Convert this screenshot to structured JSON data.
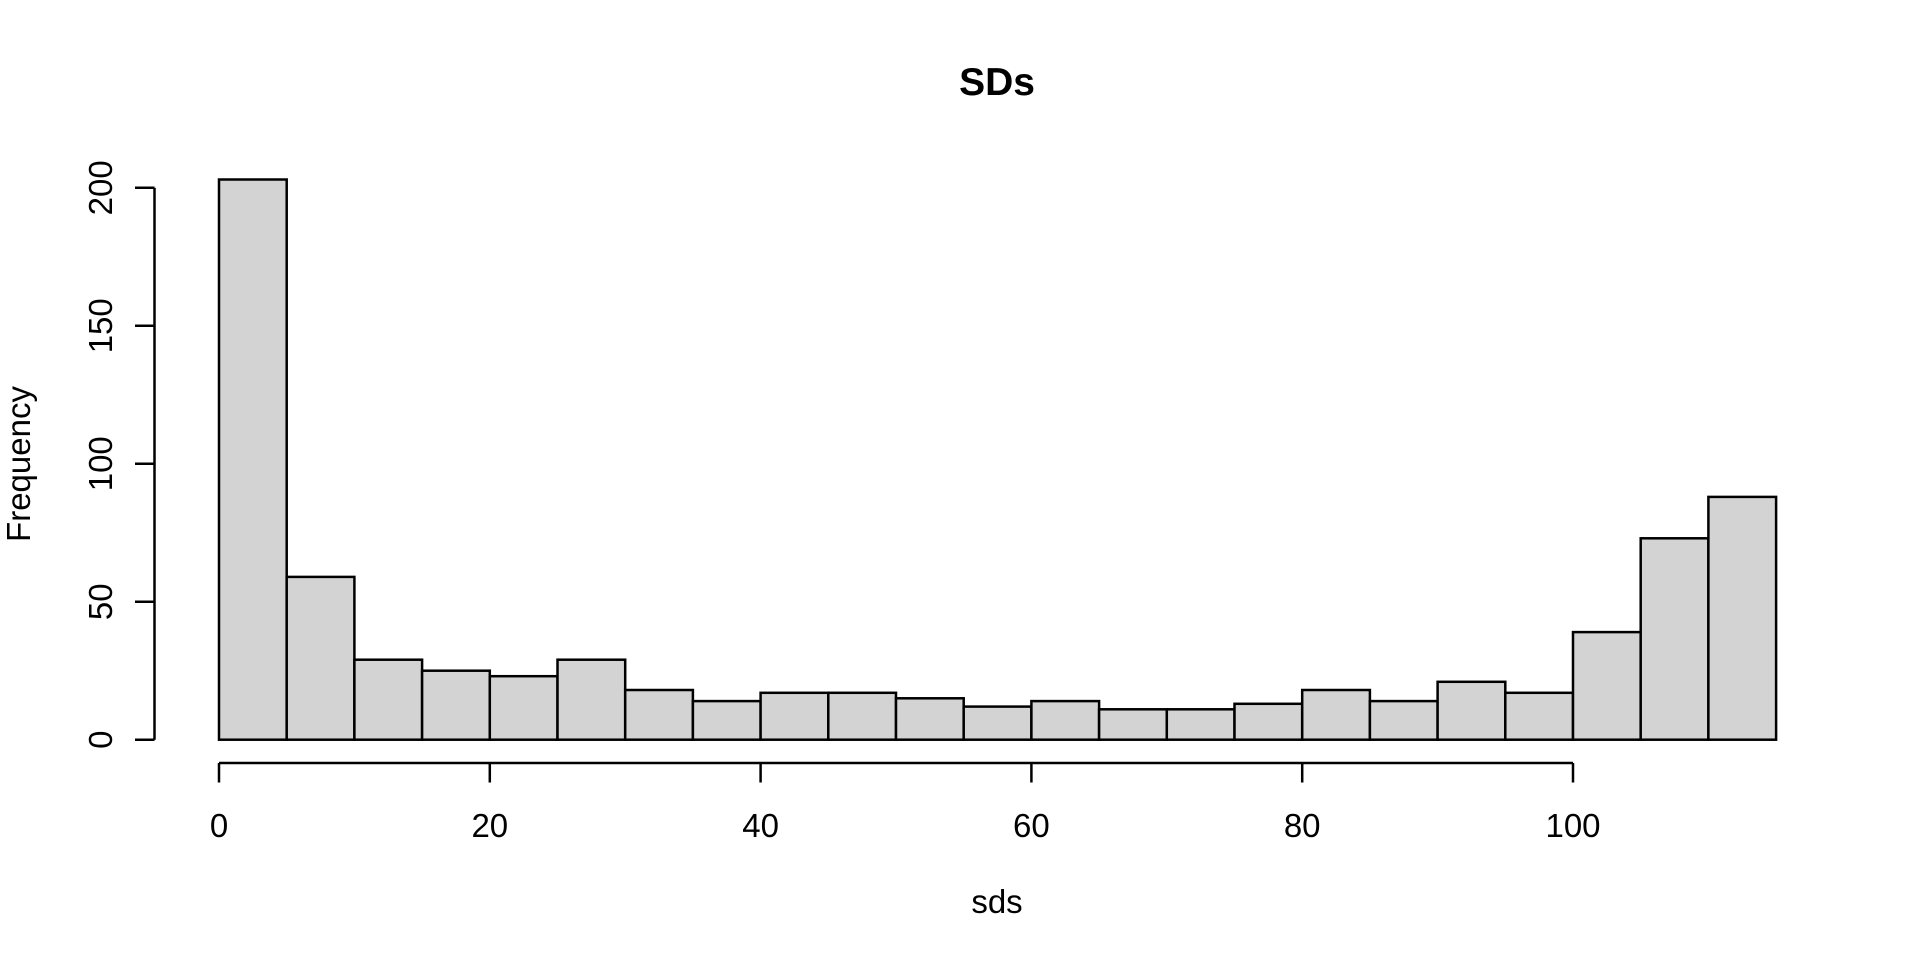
{
  "chart_data": {
    "type": "bar",
    "variant": "histogram",
    "title": "SDs",
    "xlabel": "sds",
    "ylabel": "Frequency",
    "bin_start": 0,
    "bin_width": 5,
    "bin_edges": [
      0,
      5,
      10,
      15,
      20,
      25,
      30,
      35,
      40,
      45,
      50,
      55,
      60,
      65,
      70,
      75,
      80,
      85,
      90,
      95,
      100,
      105,
      110,
      115
    ],
    "counts": [
      203,
      59,
      29,
      25,
      23,
      29,
      18,
      14,
      17,
      17,
      15,
      12,
      14,
      11,
      11,
      13,
      18,
      14,
      21,
      17,
      39,
      73,
      88
    ],
    "x_ticks": [
      0,
      20,
      40,
      60,
      80,
      100
    ],
    "y_ticks": [
      0,
      50,
      100,
      150,
      200
    ],
    "xlim": [
      0,
      115
    ],
    "ylim": [
      0,
      205
    ],
    "grid": false,
    "legend": "none",
    "bar_fill": "#D3D3D3",
    "bar_border": "#000000",
    "axis_color": "#000000",
    "background": "#FFFFFF"
  }
}
